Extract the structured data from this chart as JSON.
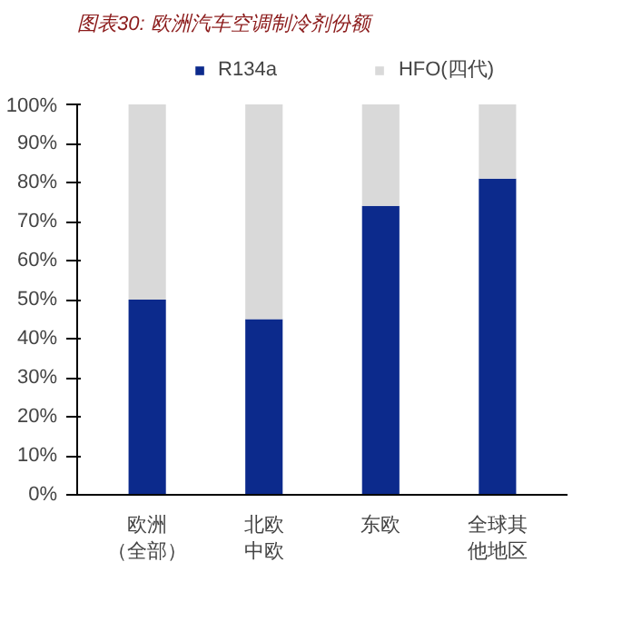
{
  "chart_data": {
    "type": "bar",
    "title": "图表30:  欧洲汽车空调制冷剂份额",
    "stacked": true,
    "categories": [
      "欧洲（全部）",
      "北欧中欧",
      "东欧",
      "全球其他地区"
    ],
    "series": [
      {
        "name": "R134a",
        "color": "#0c2a8c",
        "values": [
          50,
          45,
          74,
          81
        ]
      },
      {
        "name": "HFO(四代)",
        "color": "#d9d9d9",
        "values": [
          50,
          55,
          26,
          19
        ]
      }
    ],
    "ylim": [
      0,
      100
    ],
    "yticks": [
      {
        "value": 0,
        "label": "0%"
      },
      {
        "value": 10,
        "label": "10%"
      },
      {
        "value": 20,
        "label": "20%"
      },
      {
        "value": 30,
        "label": "30%"
      },
      {
        "value": 40,
        "label": "40%"
      },
      {
        "value": 50,
        "label": "50%"
      },
      {
        "value": 60,
        "label": "60%"
      },
      {
        "value": 70,
        "label": "70%"
      },
      {
        "value": 80,
        "label": "80%"
      },
      {
        "value": 90,
        "label": "90%"
      },
      {
        "value": 100,
        "label": "100%"
      }
    ],
    "grid": false,
    "legend": "top"
  }
}
